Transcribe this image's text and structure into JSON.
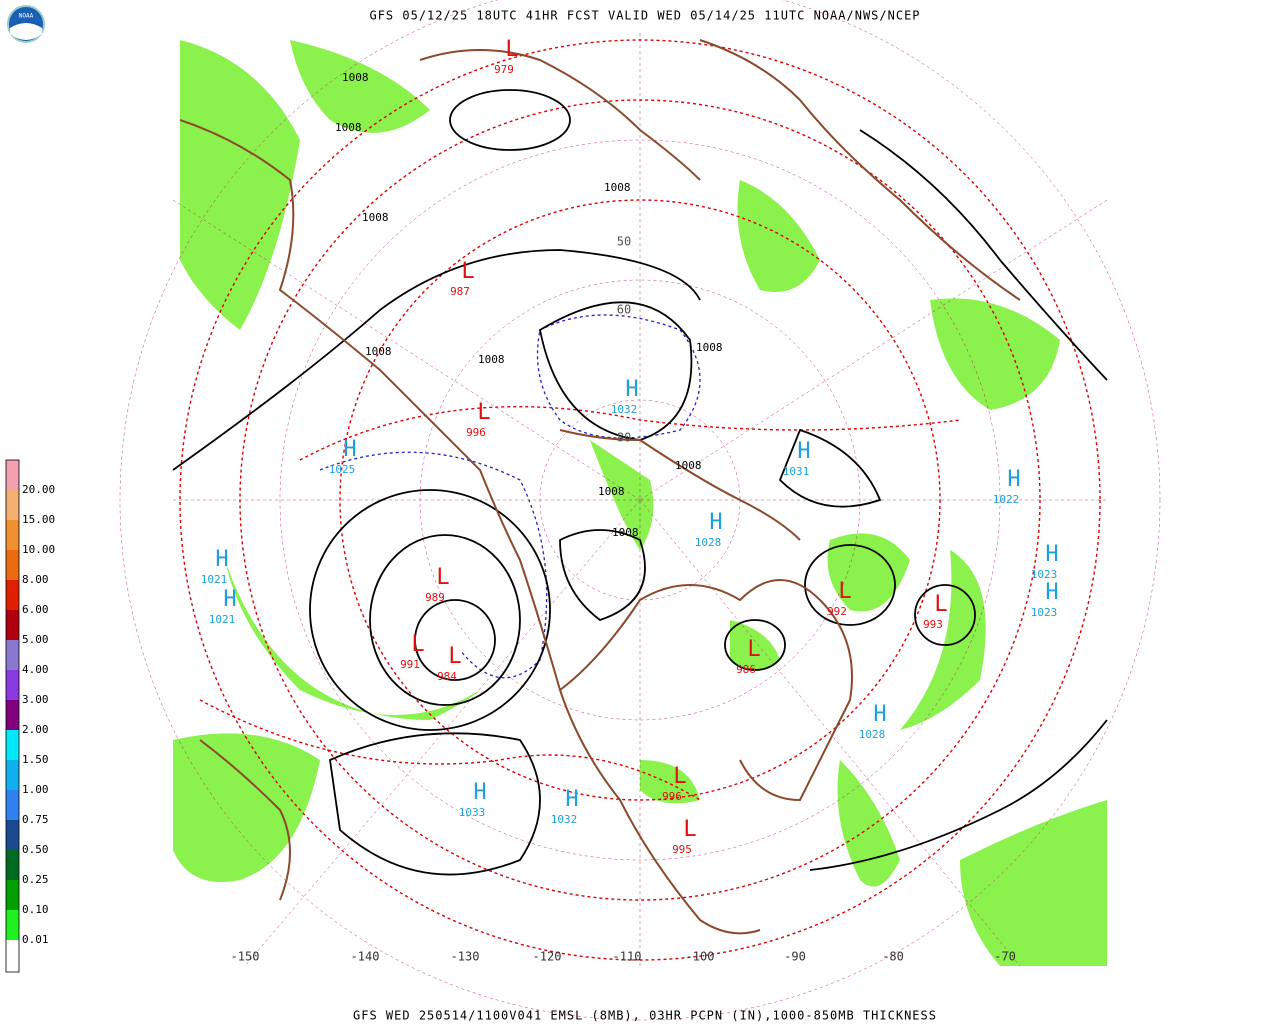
{
  "header": {
    "title": "GFS 05/12/25 18UTC 41HR FCST VALID WED 05/14/25 11UTC NOAA/NWS/NCEP",
    "logo": "NOAA"
  },
  "legend": {
    "labels": [
      "20.00",
      "15.00",
      "10.00",
      "8.00",
      "6.00",
      "5.00",
      "4.00",
      "3.00",
      "2.00",
      "1.50",
      "1.00",
      "0.75",
      "0.50",
      "0.25",
      "0.10",
      "0.01"
    ]
  },
  "map": {
    "longitude_labels": [
      "-150",
      "-140",
      "-130",
      "-120",
      "-110",
      "-100",
      "-90",
      "-80",
      "-70"
    ],
    "latitude_labels": [
      "50",
      "60",
      "80"
    ],
    "pressure_centers": [
      {
        "symbol": "H",
        "value": "1025"
      },
      {
        "symbol": "H",
        "value": "1021"
      },
      {
        "symbol": "H",
        "value": "1021"
      },
      {
        "symbol": "H",
        "value": "1022"
      },
      {
        "symbol": "H",
        "value": "1023"
      },
      {
        "symbol": "H",
        "value": "1023"
      },
      {
        "symbol": "H",
        "value": "1028"
      },
      {
        "symbol": "H",
        "value": "1031"
      },
      {
        "symbol": "H",
        "value": "1032"
      },
      {
        "symbol": "H",
        "value": "1033"
      },
      {
        "symbol": "H",
        "value": "1032"
      },
      {
        "symbol": "H",
        "value": "1028"
      },
      {
        "symbol": "L",
        "value": "989"
      },
      {
        "symbol": "L",
        "value": "984"
      },
      {
        "symbol": "L",
        "value": "991"
      },
      {
        "symbol": "L",
        "value": "993"
      },
      {
        "symbol": "L",
        "value": "992"
      },
      {
        "symbol": "L",
        "value": "986"
      },
      {
        "symbol": "L",
        "value": "996"
      },
      {
        "symbol": "L",
        "value": "995"
      },
      {
        "symbol": "L",
        "value": "979"
      },
      {
        "symbol": "L",
        "value": "996"
      },
      {
        "symbol": "L",
        "value": "987"
      }
    ],
    "isobar_labels": [
      "1008",
      "1008",
      "1008",
      "1008",
      "1008",
      "1008",
      "1008",
      "1008",
      "1008",
      "1008"
    ]
  },
  "footer": {
    "text": "GFS WED 250514/1100V041 EMSL (8MB), 03HR PCPN (IN),1000-850MB THICKNESS"
  }
}
